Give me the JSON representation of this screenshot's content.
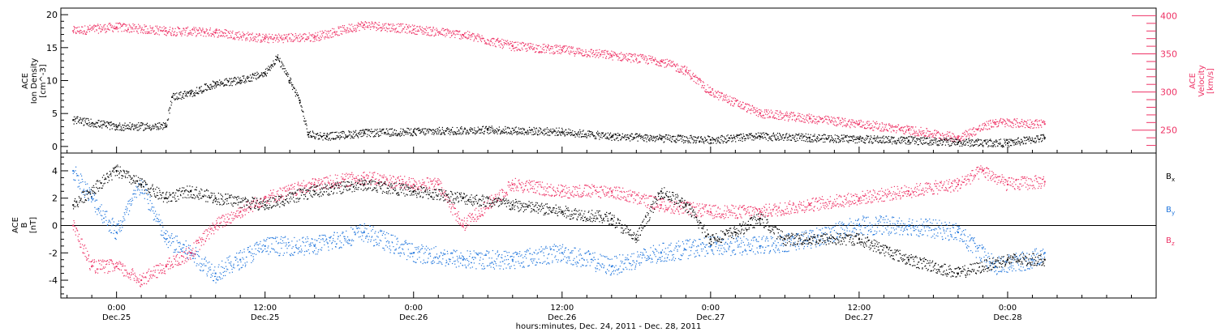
{
  "chart_data": [
    {
      "type": "scatter",
      "panel": "top",
      "ylabel_left": [
        "ACE",
        "Ion Density",
        "[cm^-3]"
      ],
      "ylabel_right": [
        "ACE",
        "Velocity",
        "[km/s]"
      ],
      "ylim_left": [
        -1,
        21
      ],
      "yticks_left": [
        "0",
        "5",
        "10",
        "15",
        "20"
      ],
      "ylim_right": [
        220,
        410
      ],
      "yticks_right": [
        "250",
        "300",
        "350",
        "400"
      ],
      "series": [
        {
          "axis": "left",
          "color": "#000000",
          "x": [
            -3.5,
            0,
            4,
            4.5,
            6,
            8,
            10,
            12,
            13,
            14,
            14.8,
            15.5,
            17,
            20,
            24,
            30,
            36,
            40,
            44,
            48,
            52,
            56,
            60,
            64,
            68,
            72,
            75
          ],
          "y": [
            4,
            3,
            3,
            7.5,
            8,
            9.5,
            10,
            11,
            13.5,
            10,
            7,
            1.8,
            1.5,
            2,
            2.2,
            2.5,
            2.2,
            1.5,
            1.2,
            1,
            1.5,
            1.3,
            1.1,
            0.9,
            0.6,
            0.5,
            1.3
          ]
        },
        {
          "axis": "right",
          "color": "#ee3366",
          "x": [
            -3.5,
            0,
            4,
            8,
            12,
            16,
            20,
            24,
            28,
            32,
            36,
            40,
            44,
            46,
            48,
            52,
            56,
            60,
            64,
            68,
            71,
            75
          ],
          "y": [
            380,
            385,
            380,
            378,
            370,
            372,
            388,
            382,
            375,
            360,
            355,
            348,
            340,
            328,
            300,
            272,
            265,
            258,
            250,
            240,
            260,
            258
          ]
        }
      ]
    },
    {
      "type": "scatter",
      "panel": "bottom",
      "ylabel": [
        "ACE",
        "B",
        "[nT]"
      ],
      "ylim": [
        -5.3,
        5.3
      ],
      "yticks": [
        "-4",
        "-2",
        "0",
        "2",
        "4"
      ],
      "legend": [
        "B_x",
        "B_y",
        "B_z"
      ],
      "legend_text": [
        {
          "main": "B",
          "sub": "x"
        },
        {
          "main": "B",
          "sub": "y"
        },
        {
          "main": "B",
          "sub": "z"
        }
      ],
      "series": [
        {
          "name": "B_x",
          "color": "#000000",
          "x": [
            -3.5,
            0,
            2,
            4,
            6,
            8,
            12,
            16,
            20,
            24,
            28,
            32,
            36,
            40,
            42,
            44,
            46,
            48,
            50,
            52,
            54,
            56,
            60,
            64,
            68,
            72,
            75
          ],
          "y": [
            1.5,
            4,
            3,
            2,
            2.5,
            2,
            1.5,
            2.5,
            3,
            2.5,
            2,
            1.5,
            1,
            0.5,
            -1,
            2.5,
            1.5,
            -1,
            -0.5,
            0.5,
            -1,
            -1,
            -1,
            -2.5,
            -3.5,
            -2.5,
            -2.5
          ]
        },
        {
          "name": "B_y",
          "color": "#2277dd",
          "x": [
            -3.5,
            -2,
            0,
            2,
            4,
            6,
            8,
            10,
            12,
            16,
            20,
            24,
            28,
            32,
            36,
            40,
            44,
            48,
            52,
            56,
            60,
            64,
            68,
            71,
            74,
            75
          ],
          "y": [
            4,
            2,
            -0.5,
            3,
            -1,
            -2,
            -3.5,
            -2.5,
            -1.5,
            -1.5,
            -0.5,
            -2,
            -2.5,
            -2.5,
            -2,
            -3,
            -2,
            -1.5,
            -1.5,
            -1,
            0,
            0,
            -0.5,
            -3,
            -2.5,
            -2
          ]
        },
        {
          "name": "B_z",
          "color": "#ee3366",
          "x": [
            -3.5,
            -2,
            0,
            2,
            4,
            6,
            8,
            10,
            12,
            16,
            20,
            24,
            26,
            28,
            32,
            36,
            40,
            44,
            48,
            52,
            56,
            60,
            64,
            68,
            70,
            72,
            75
          ],
          "y": [
            0,
            -3,
            -3,
            -4,
            -3,
            -2,
            0,
            1,
            2,
            3,
            3.5,
            3,
            3,
            0,
            3,
            2.5,
            2.5,
            1.5,
            1,
            1,
            1.5,
            2,
            2.5,
            3,
            4,
            3,
            3.2
          ]
        }
      ]
    }
  ],
  "x_axis": {
    "xlim": [
      -4.5,
      84
    ],
    "tick_times": [
      "0:00",
      "12:00",
      "0:00",
      "12:00",
      "0:00",
      "12:00",
      "0:00"
    ],
    "tick_dates": [
      "Dec.25",
      "Dec.25",
      "Dec.26",
      "Dec.26",
      "Dec.27",
      "Dec.27",
      "Dec.28"
    ],
    "tick_values": [
      0,
      12,
      24,
      36,
      48,
      60,
      72
    ],
    "xlabel": "hours:minutes, Dec. 24, 2011 - Dec. 28, 2011"
  },
  "colors": {
    "black": "#000000",
    "red": "#ee3366",
    "blue": "#2277dd"
  }
}
